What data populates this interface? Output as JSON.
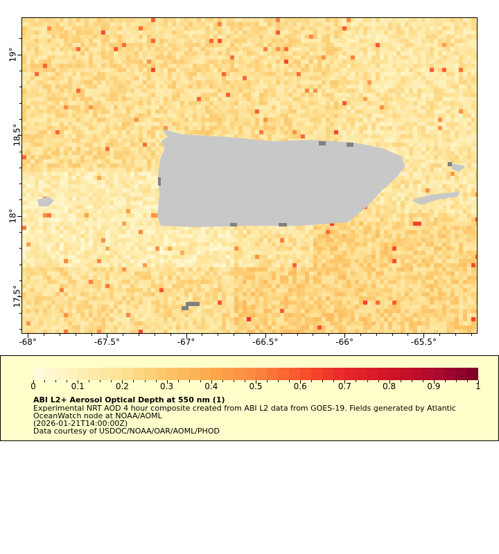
{
  "map": {
    "lon_ticks": [
      "-68°",
      "-67.5°",
      "-67°",
      "-66.5°",
      "-66°",
      "-65.5°"
    ],
    "lon_values": [
      -68,
      -67.5,
      -67,
      -66.5,
      -66,
      -65.5
    ],
    "lat_ticks": [
      "19°",
      "18.5°",
      "18°",
      "17.5°"
    ],
    "lat_values": [
      19,
      18.5,
      18,
      17.5
    ],
    "lon_range": [
      -68.04,
      -65.16
    ],
    "lat_range": [
      17.27,
      19.23
    ],
    "land_color": "#c8c8c8",
    "nodata_color": "#808080"
  },
  "legend": {
    "colorbar_ticks": [
      "0",
      "0.1",
      "0.2",
      "0.3",
      "0.4",
      "0.5",
      "0.6",
      "0.7",
      "0.8",
      "0.9",
      "1"
    ],
    "range": [
      0,
      1
    ],
    "palette": [
      "#fffde0",
      "#fff0b8",
      "#fee194",
      "#fdc66a",
      "#fca94c",
      "#fb8840",
      "#f9532c",
      "#e8282a",
      "#d01525",
      "#b00a30",
      "#7a0028"
    ],
    "title": "ABI L2+ Aerosol Optical Depth at 550 nm (1)",
    "line1": "Experimental NRT AOD 4 hour composite created from ABI L2 data from GOES-19. Fields generated by Atlantic",
    "line2": "OceanWatch node at NOAA/AOML",
    "line3": "(2026-01-21T14:00:00Z)",
    "line4": "Data courtesy of USDOC/NOAA/OAR/AOML/PHOD"
  }
}
